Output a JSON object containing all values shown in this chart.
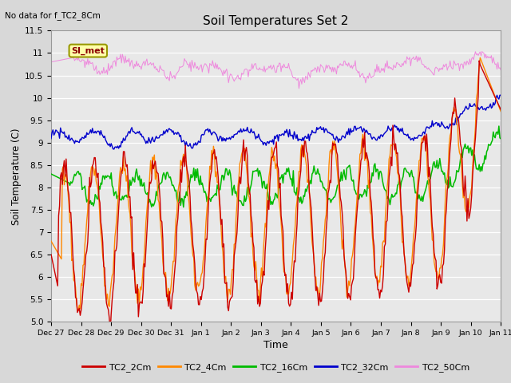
{
  "title": "Soil Temperatures Set 2",
  "subtitle": "No data for f_TC2_8Cm",
  "xlabel": "Time",
  "ylabel": "Soil Temperature (C)",
  "ylim": [
    5.0,
    11.5
  ],
  "yticks": [
    5.0,
    5.5,
    6.0,
    6.5,
    7.0,
    7.5,
    8.0,
    8.5,
    9.0,
    9.5,
    10.0,
    10.5,
    11.0,
    11.5
  ],
  "bg_color": "#d8d8d8",
  "plot_bg_color": "#e8e8e8",
  "grid_color": "#ffffff",
  "colors": {
    "TC2_2Cm": "#cc0000",
    "TC2_4Cm": "#ff8800",
    "TC2_16Cm": "#00bb00",
    "TC2_32Cm": "#0000cc",
    "TC2_50Cm": "#ee88dd"
  },
  "legend_label": "SI_met",
  "x_tick_labels": [
    "Dec 27",
    "Dec 28",
    "Dec 29",
    "Dec 30",
    "Dec 31",
    "Jan 1",
    "Jan 2",
    "Jan 3",
    "Jan 4",
    "Jan 5",
    "Jan 6",
    "Jan 7",
    "Jan 8",
    "Jan 9",
    "Jan 10",
    "Jan 11"
  ],
  "n_points": 480,
  "n_days": 15
}
